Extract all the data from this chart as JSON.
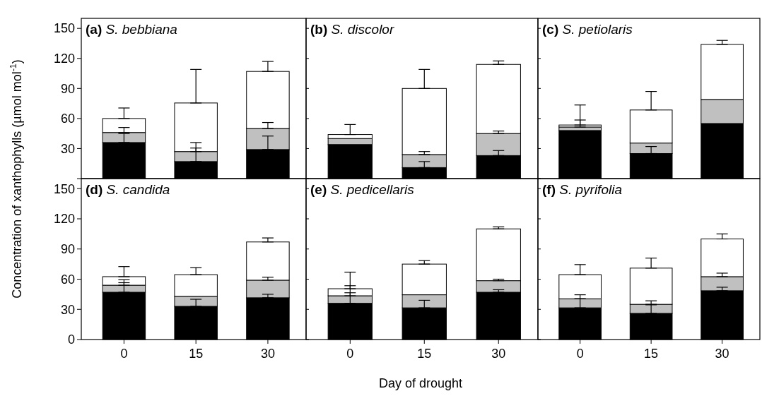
{
  "chart_data": [
    {
      "type": "bar",
      "stacked": true,
      "title": "(a) S. bebbiana",
      "ylabel": "Concentration of xanthophylls (µmol mol$^{-1}$)",
      "categories": [
        "0",
        "15",
        "30"
      ],
      "ylim": [
        0,
        160
      ],
      "yticks": [
        {
          "value": 0,
          "label": null
        },
        30,
        60,
        90,
        120,
        150
      ],
      "tick_labels": "y",
      "grid": false,
      "series": [
        {
          "color": "#000000",
          "values": [
            36,
            17,
            29
          ],
          "errors": [
            [
              36,
              45
            ],
            [
              17,
              30.5
            ],
            [
              29,
              42.5
            ]
          ]
        },
        {
          "color": "#c0c0c0",
          "values": [
            10,
            10,
            21
          ],
          "errors": [
            [
              46,
              51
            ],
            [
              27,
              36
            ],
            [
              50,
              56
            ]
          ]
        },
        {
          "color": "#ffffff",
          "values": [
            14,
            48.5,
            57
          ],
          "errors": [
            [
              60,
              70.5
            ],
            [
              75.5,
              109
            ],
            [
              107,
              117
            ]
          ]
        }
      ]
    },
    {
      "type": "bar",
      "stacked": true,
      "title": "(b) S. discolor",
      "categories": [
        "0",
        "15",
        "30"
      ],
      "ylim": [
        0,
        160
      ],
      "yticks": [
        0,
        30,
        60,
        90,
        120,
        150
      ],
      "tick_labels": false,
      "grid": false,
      "series": [
        {
          "color": "#000000",
          "values": [
            34,
            11,
            23
          ],
          "errors": [
            null,
            [
              11,
              17
            ],
            [
              23,
              28
            ]
          ]
        },
        {
          "color": "#c0c0c0",
          "values": [
            6,
            13,
            22
          ],
          "errors": [
            null,
            [
              24,
              27
            ],
            [
              45,
              47.5
            ]
          ]
        },
        {
          "color": "#ffffff",
          "values": [
            4,
            66,
            69
          ],
          "errors": [
            [
              44,
              54
            ],
            [
              90,
              109
            ],
            [
              114,
              117.5
            ]
          ]
        }
      ]
    },
    {
      "type": "bar",
      "stacked": true,
      "title": "(c) S. petiolaris",
      "categories": [
        "0",
        "15",
        "30"
      ],
      "ylim": [
        0,
        160
      ],
      "yticks": [
        0,
        30,
        60,
        90,
        120,
        150
      ],
      "tick_labels": false,
      "grid": false,
      "series": [
        {
          "color": "#000000",
          "values": [
            48,
            25,
            55
          ],
          "errors": [
            null,
            [
              25,
              32
            ],
            null
          ]
        },
        {
          "color": "#c0c0c0",
          "values": [
            3.5,
            10.5,
            24
          ],
          "errors": [
            [
              51.5,
              58.5
            ],
            null,
            null
          ]
        },
        {
          "color": "#ffffff",
          "values": [
            2,
            33,
            55
          ],
          "errors": [
            [
              53.5,
              73.5
            ],
            [
              68.5,
              87
            ],
            [
              134,
              138
            ]
          ]
        }
      ]
    },
    {
      "type": "bar",
      "stacked": true,
      "title": "(d) S. candida",
      "categories": [
        "0",
        "15",
        "30"
      ],
      "ylim": [
        0,
        160
      ],
      "yticks": [
        0,
        30,
        60,
        90,
        120,
        150
      ],
      "grid": false,
      "series": [
        {
          "color": "#000000",
          "values": [
            47,
            33,
            41.5
          ],
          "errors": [
            [
              47,
              56.5
            ],
            [
              33,
              40
            ],
            [
              41.5,
              45
            ]
          ]
        },
        {
          "color": "#c0c0c0",
          "values": [
            7,
            10,
            17.5
          ],
          "errors": [
            [
              54,
              59.5
            ],
            null,
            [
              59,
              62
            ]
          ]
        },
        {
          "color": "#ffffff",
          "values": [
            8.5,
            21.5,
            38
          ],
          "errors": [
            [
              62.5,
              72.5
            ],
            [
              64.5,
              71.5
            ],
            [
              97,
              101
            ]
          ]
        }
      ]
    },
    {
      "type": "bar",
      "stacked": true,
      "title": "(e) S. pedicellaris",
      "xlabel": "Day of drought",
      "categories": [
        "0",
        "15",
        "30"
      ],
      "ylim": [
        0,
        160
      ],
      "yticks": [
        0,
        30,
        60,
        90,
        120,
        150
      ],
      "tick_labels": "x",
      "grid": false,
      "series": [
        {
          "color": "#000000",
          "values": [
            36,
            31.5,
            47
          ],
          "errors": [
            [
              36,
              46.5
            ],
            [
              31.5,
              39
            ],
            [
              47,
              49.5
            ]
          ]
        },
        {
          "color": "#c0c0c0",
          "values": [
            7.5,
            13,
            11.5
          ],
          "errors": [
            [
              43.5,
              53.5
            ],
            null,
            [
              58.5,
              60
            ]
          ]
        },
        {
          "color": "#ffffff",
          "values": [
            7,
            30.5,
            51.5
          ],
          "errors": [
            [
              50.5,
              67
            ],
            [
              75,
              78.5
            ],
            [
              110,
              112
            ]
          ]
        }
      ]
    },
    {
      "type": "bar",
      "stacked": true,
      "title": "(f) S. pyrifolia",
      "categories": [
        "0",
        "15",
        "30"
      ],
      "ylim": [
        0,
        160
      ],
      "yticks": [
        0,
        30,
        60,
        90,
        120,
        150
      ],
      "tick_labels": "x",
      "grid": false,
      "series": [
        {
          "color": "#000000",
          "values": [
            31.5,
            26,
            48.5
          ],
          "errors": [
            [
              31.5,
              40.5
            ],
            [
              26,
              34.5
            ],
            [
              48.5,
              52
            ]
          ]
        },
        {
          "color": "#c0c0c0",
          "values": [
            9,
            9,
            14
          ],
          "errors": [
            [
              40.5,
              44.5
            ],
            [
              35,
              38.5
            ],
            [
              62.5,
              66
            ]
          ]
        },
        {
          "color": "#ffffff",
          "values": [
            24,
            36,
            37.5
          ],
          "errors": [
            [
              64.5,
              74.5
            ],
            [
              71,
              81
            ],
            [
              100,
              105
            ]
          ]
        }
      ]
    }
  ]
}
